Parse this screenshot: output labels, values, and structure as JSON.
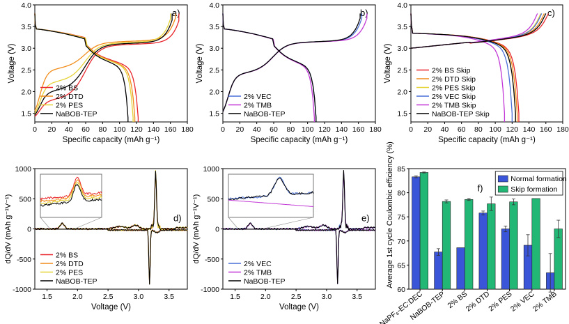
{
  "colors": {
    "BS": "#e8262b",
    "DTD": "#f28c1a",
    "PES": "#e4d236",
    "VEC": "#4a6fd6",
    "TMB": "#c238d6",
    "TEP": "#000000",
    "normal": "#3b55d8",
    "skip": "#23b776"
  },
  "chart_data": [
    {
      "id": "a",
      "type": "line",
      "panel_label": "a)",
      "xlabel": "Specific capacity (mAh g⁻¹)",
      "ylabel": "Voltage (V)",
      "xlim": [
        0,
        180
      ],
      "ylim": [
        1.3,
        4.0
      ],
      "xticks": [
        "0",
        "20",
        "40",
        "60",
        "80",
        "100",
        "120",
        "140",
        "160",
        "180"
      ],
      "yticks": [
        "1.5",
        "2.0",
        "2.5",
        "3.0",
        "3.5",
        "4.0"
      ],
      "legend_position": "lower-left",
      "series": [
        {
          "name": "2% BS",
          "color_key": "BS",
          "charge_end": 170,
          "discharge_end": 122,
          "low_plateau": 1.75
        },
        {
          "name": "2% DTD",
          "color_key": "DTD",
          "charge_end": 166,
          "discharge_end": 118,
          "low_plateau": 2.45
        },
        {
          "name": "2% PES",
          "color_key": "PES",
          "charge_end": 160,
          "discharge_end": 116,
          "low_plateau": 2.15
        },
        {
          "name": "NaBOB-TEP",
          "color_key": "TEP",
          "charge_end": 162,
          "discharge_end": 110,
          "low_plateau": 1.95
        }
      ]
    },
    {
      "id": "b",
      "type": "line",
      "panel_label": "b)",
      "xlabel": "Specific capacity (mAh g⁻¹)",
      "ylabel": "Voltage (V)",
      "xlim": [
        0,
        180
      ],
      "ylim": [
        1.3,
        4.0
      ],
      "xticks": [
        "0",
        "20",
        "40",
        "60",
        "80",
        "100",
        "120",
        "140",
        "160",
        "180"
      ],
      "yticks": [
        "1.5",
        "2.0",
        "2.5",
        "3.0",
        "3.5",
        "4.0"
      ],
      "legend_position": "lower-left",
      "series": [
        {
          "name": "2% VEC",
          "color_key": "VEC",
          "charge_end": 164,
          "discharge_end": 110,
          "low_plateau": 2.35
        },
        {
          "name": "2% TMB",
          "color_key": "TMB",
          "charge_end": 170,
          "discharge_end": 108,
          "low_plateau": 2.35
        },
        {
          "name": "NaBOB-TEP",
          "color_key": "TEP",
          "charge_end": 162,
          "discharge_end": 110,
          "low_plateau": 2.35
        }
      ]
    },
    {
      "id": "c",
      "type": "line",
      "panel_label": "c)",
      "xlabel": "Specific capacity (mAh g⁻¹)",
      "ylabel": "Voltage (V)",
      "xlim": [
        0,
        180
      ],
      "ylim": [
        1.3,
        4.0
      ],
      "xticks": [
        "0",
        "20",
        "40",
        "60",
        "80",
        "100",
        "120",
        "140",
        "160",
        "180"
      ],
      "yticks": [
        "1.5",
        "2.0",
        "2.5",
        "3.0",
        "3.5",
        "4.0"
      ],
      "legend_position": "lower-left",
      "series": [
        {
          "name": "2% BS Skip",
          "color_key": "BS",
          "charge_end": 163,
          "discharge_end": 128
        },
        {
          "name": "2% DTD Skip",
          "color_key": "DTD",
          "charge_end": 158,
          "discharge_end": 126
        },
        {
          "name": "2% PES Skip",
          "color_key": "PES",
          "charge_end": 154,
          "discharge_end": 124
        },
        {
          "name": "2% VEC Skip",
          "color_key": "VEC",
          "charge_end": 155,
          "discharge_end": 120
        },
        {
          "name": "2% TMB Skip",
          "color_key": "TMB",
          "charge_end": 150,
          "discharge_end": 111
        },
        {
          "name": "NaBOB-TEP Skip",
          "color_key": "TEP",
          "charge_end": 160,
          "discharge_end": 124
        }
      ]
    },
    {
      "id": "d",
      "type": "line",
      "panel_label": "d)",
      "xlabel": "Voltage (V)",
      "ylabel": "dQ/dV (mAh g⁻¹V⁻¹)",
      "xlim": [
        1.3,
        3.8
      ],
      "ylim": [
        -1000,
        1000
      ],
      "xticks": [
        "1.5",
        "2.0",
        "2.5",
        "3.0",
        "3.5"
      ],
      "yticks": [
        "-1000",
        "-500",
        "0",
        "500",
        "1000"
      ],
      "legend_position": "lower-left",
      "inset": true,
      "series": [
        {
          "name": "2% BS",
          "color_key": "BS"
        },
        {
          "name": "2% DTD",
          "color_key": "DTD"
        },
        {
          "name": "2% PES",
          "color_key": "PES"
        },
        {
          "name": "NaBOB-TEP",
          "color_key": "TEP"
        }
      ]
    },
    {
      "id": "e",
      "type": "line",
      "panel_label": "e)",
      "xlabel": "Voltage (V)",
      "ylabel": "dQ/dV (mAh g⁻¹V⁻¹)",
      "xlim": [
        1.3,
        3.8
      ],
      "ylim": [
        -1000,
        1000
      ],
      "xticks": [
        "1.5",
        "2.0",
        "2.5",
        "3.0",
        "3.5"
      ],
      "yticks": [
        "-1000",
        "-500",
        "0",
        "500",
        "1000"
      ],
      "legend_position": "lower-left",
      "inset": true,
      "series": [
        {
          "name": "2% VEC",
          "color_key": "VEC"
        },
        {
          "name": "2% TMB",
          "color_key": "TMB"
        },
        {
          "name": "NaBOB-TEP",
          "color_key": "TEP"
        }
      ]
    },
    {
      "id": "f",
      "type": "bar",
      "panel_label": "f)",
      "ylabel": "Average 1st cycle Coulombic efficiency (%)",
      "ylim": [
        60,
        85
      ],
      "yticks": [
        "60",
        "65",
        "70",
        "75",
        "80",
        "85"
      ],
      "legend_position": "top-right",
      "categories": [
        "NaPF₆-EC:DEC",
        "NaBOB-TEP",
        "2% BS",
        "2% DTD",
        "2% PES",
        "2% VEC",
        "2% TMB"
      ],
      "series": [
        {
          "name": "Normal formation",
          "color_key": "normal",
          "values": [
            83.3,
            67.7,
            68.6,
            75.8,
            72.5,
            69.1,
            63.4
          ],
          "errors": [
            0.2,
            0.7,
            0.0,
            0.4,
            0.6,
            2.2,
            4.0
          ]
        },
        {
          "name": "Skip formation",
          "color_key": "skip",
          "values": [
            84.2,
            78.2,
            78.6,
            77.7,
            78.1,
            78.8,
            72.5
          ],
          "errors": [
            0.1,
            0.3,
            0.2,
            1.4,
            0.6,
            0.0,
            1.8
          ]
        }
      ]
    }
  ]
}
